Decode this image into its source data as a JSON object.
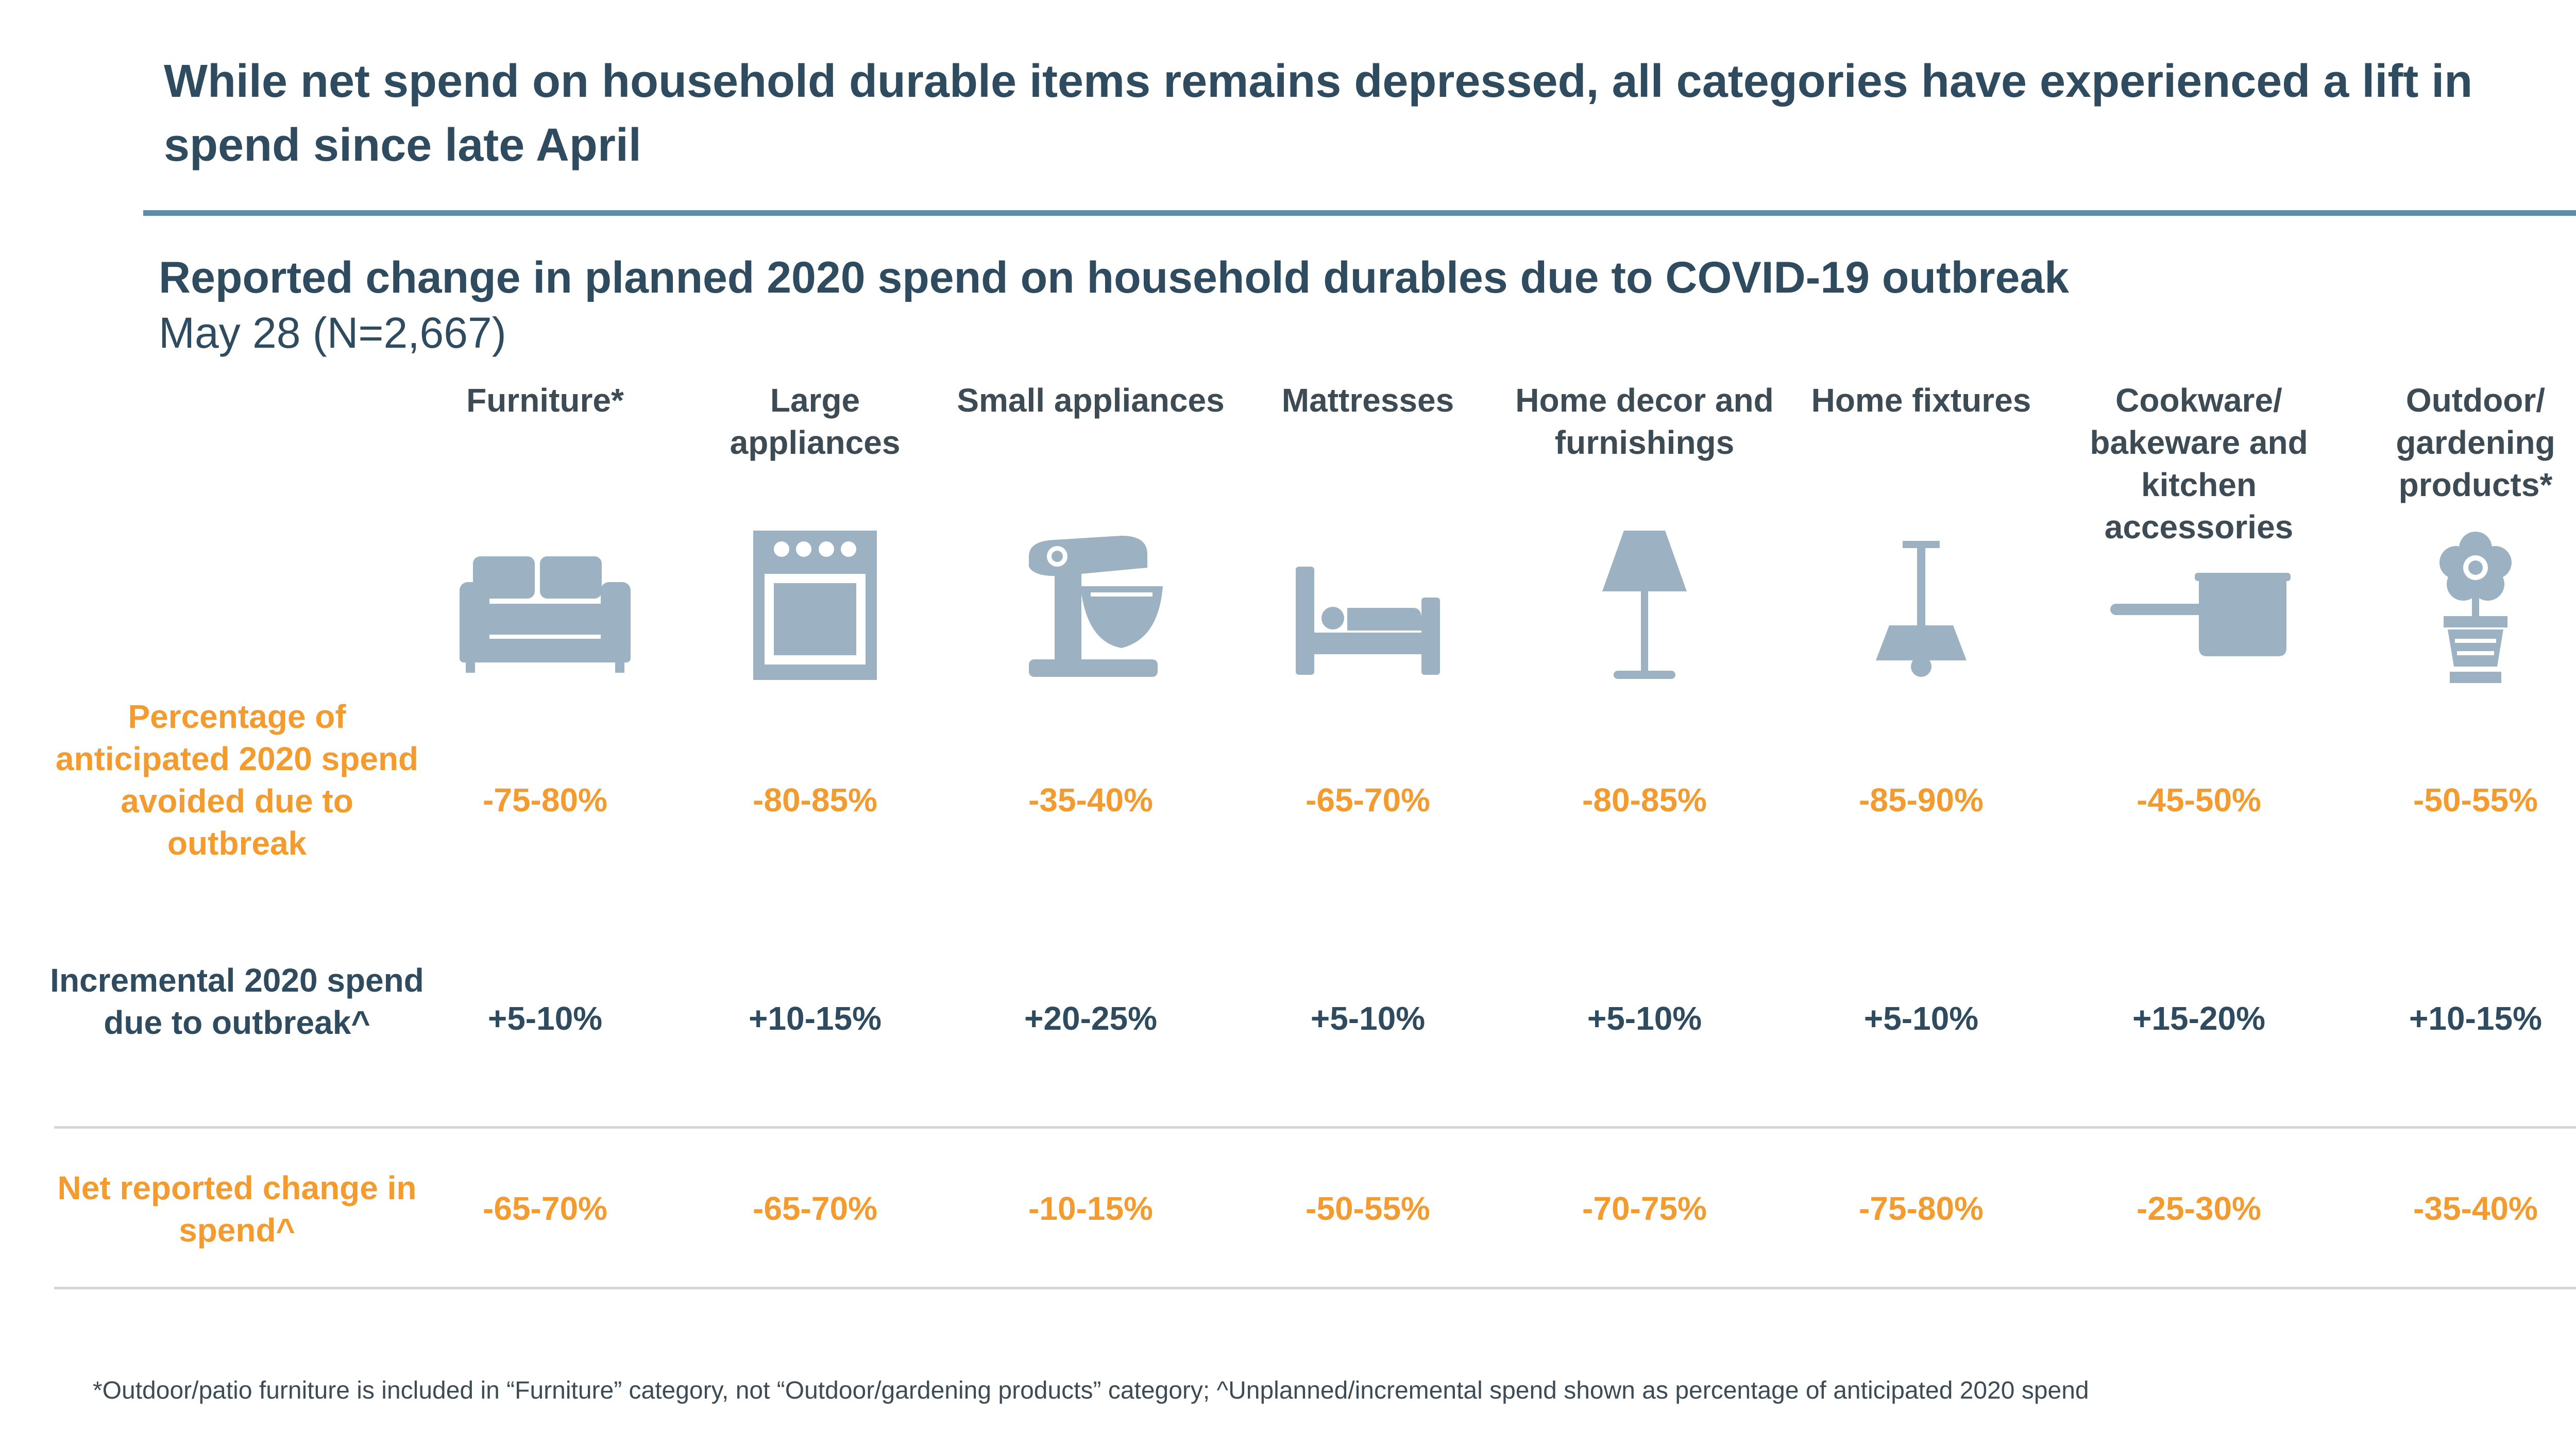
{
  "headline": "While net spend on household durable items remains depressed, all categories have experienced a lift in spend since late April",
  "chart_title": "Reported change in planned 2020 spend on household durables due to COVID-19 outbreak",
  "chart_date": "May 28 (N=2,667)",
  "row_labels": {
    "avoided": "Percentage of anticipated 2020 spend avoided due to outbreak",
    "incremental": "Incremental 2020 spend due to outbreak^",
    "net": "Net reported change in spend^"
  },
  "footnote": "*Outdoor/patio furniture is included in “Furniture” category, not “Outdoor/gardening products” category; ^Unplanned/incremental spend shown as percentage of anticipated 2020 spend",
  "colors": {
    "title": "#2f4b5f",
    "accent_orange": "#f39b2f",
    "icon": "#9cb2c3",
    "rule": "#5f8cab",
    "divider": "#d6d6d6"
  },
  "chart_data": {
    "type": "table",
    "title": "Reported change in planned 2020 spend on household durables due to COVID-19 outbreak",
    "subtitle": "May 28 (N=2,667)",
    "columns": [
      {
        "name": "Furniture*",
        "icon": "sofa-icon",
        "avoided": "-75-80%",
        "incremental": "+5-10%",
        "net": "-65-70%"
      },
      {
        "name": "Large appliances",
        "icon": "oven-icon",
        "avoided": "-80-85%",
        "incremental": "+10-15%",
        "net": "-65-70%"
      },
      {
        "name": "Small appliances",
        "icon": "stand-mixer-icon",
        "avoided": "-35-40%",
        "incremental": "+20-25%",
        "net": "-10-15%"
      },
      {
        "name": "Mattresses",
        "icon": "bed-icon",
        "avoided": "-65-70%",
        "incremental": "+5-10%",
        "net": "-50-55%"
      },
      {
        "name": "Home decor and furnishings",
        "icon": "lamp-icon",
        "avoided": "-80-85%",
        "incremental": "+5-10%",
        "net": "-70-75%"
      },
      {
        "name": "Home fixtures",
        "icon": "ceiling-light-icon",
        "avoided": "-85-90%",
        "incremental": "+5-10%",
        "net": "-75-80%"
      },
      {
        "name": "Cookware/ bakeware and kitchen accessories",
        "icon": "saucepan-icon",
        "avoided": "-45-50%",
        "incremental": "+15-20%",
        "net": "-25-30%"
      },
      {
        "name": "Outdoor/ gardening products*",
        "icon": "flower-pot-icon",
        "avoided": "-50-55%",
        "incremental": "+10-15%",
        "net": "-35-40%"
      }
    ]
  }
}
